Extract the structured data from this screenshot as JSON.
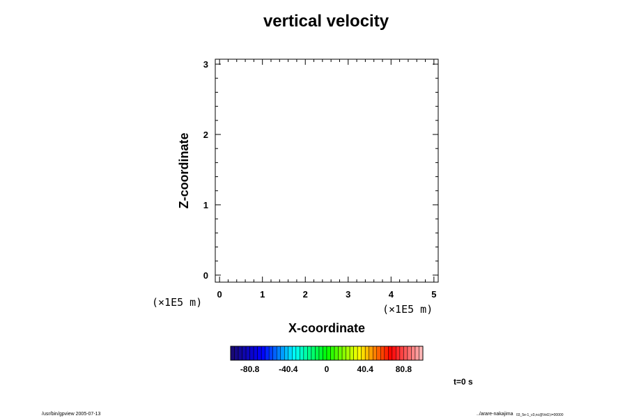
{
  "chart_data": {
    "type": "heatmap",
    "title": "vertical velocity",
    "xlabel": "X-coordinate",
    "ylabel": "Z-coordinate",
    "x_unit": "(×1E5 m)",
    "z_unit": "(×1E5 m)",
    "x_ticks": [
      "0",
      "1",
      "2",
      "3",
      "4",
      "5"
    ],
    "z_ticks": [
      "0",
      "1",
      "2",
      "3"
    ],
    "xlim": [
      -0.1,
      5.1
    ],
    "zlim": [
      -0.1,
      3.07
    ],
    "x_major_values": [
      0,
      1,
      2,
      3,
      4,
      5
    ],
    "z_major_values": [
      0,
      1,
      2,
      3
    ],
    "x_minor_step": 0.2,
    "z_minor_step": 0.2,
    "field_values": [],
    "colorbar": {
      "min": -101,
      "max": 101,
      "levels": 50,
      "tick_labels": [
        "-80.8",
        "-40.4",
        "0",
        "40.4",
        "80.8"
      ],
      "tick_values": [
        -80.8,
        -40.4,
        0,
        40.4,
        80.8
      ],
      "colors": [
        "#1a0a6e",
        "#0000ff",
        "#00ffff",
        "#00ff00",
        "#ffff00",
        "#ff0000",
        "#ffc0c0"
      ]
    },
    "time_label": "t=0 s"
  },
  "footer": {
    "left": "/usr/bin/gpview 2005-07-13",
    "right_main": "../arare-nakajima",
    "right_small": "03_5e-1_v3,nc@Vel2,t=00000"
  }
}
